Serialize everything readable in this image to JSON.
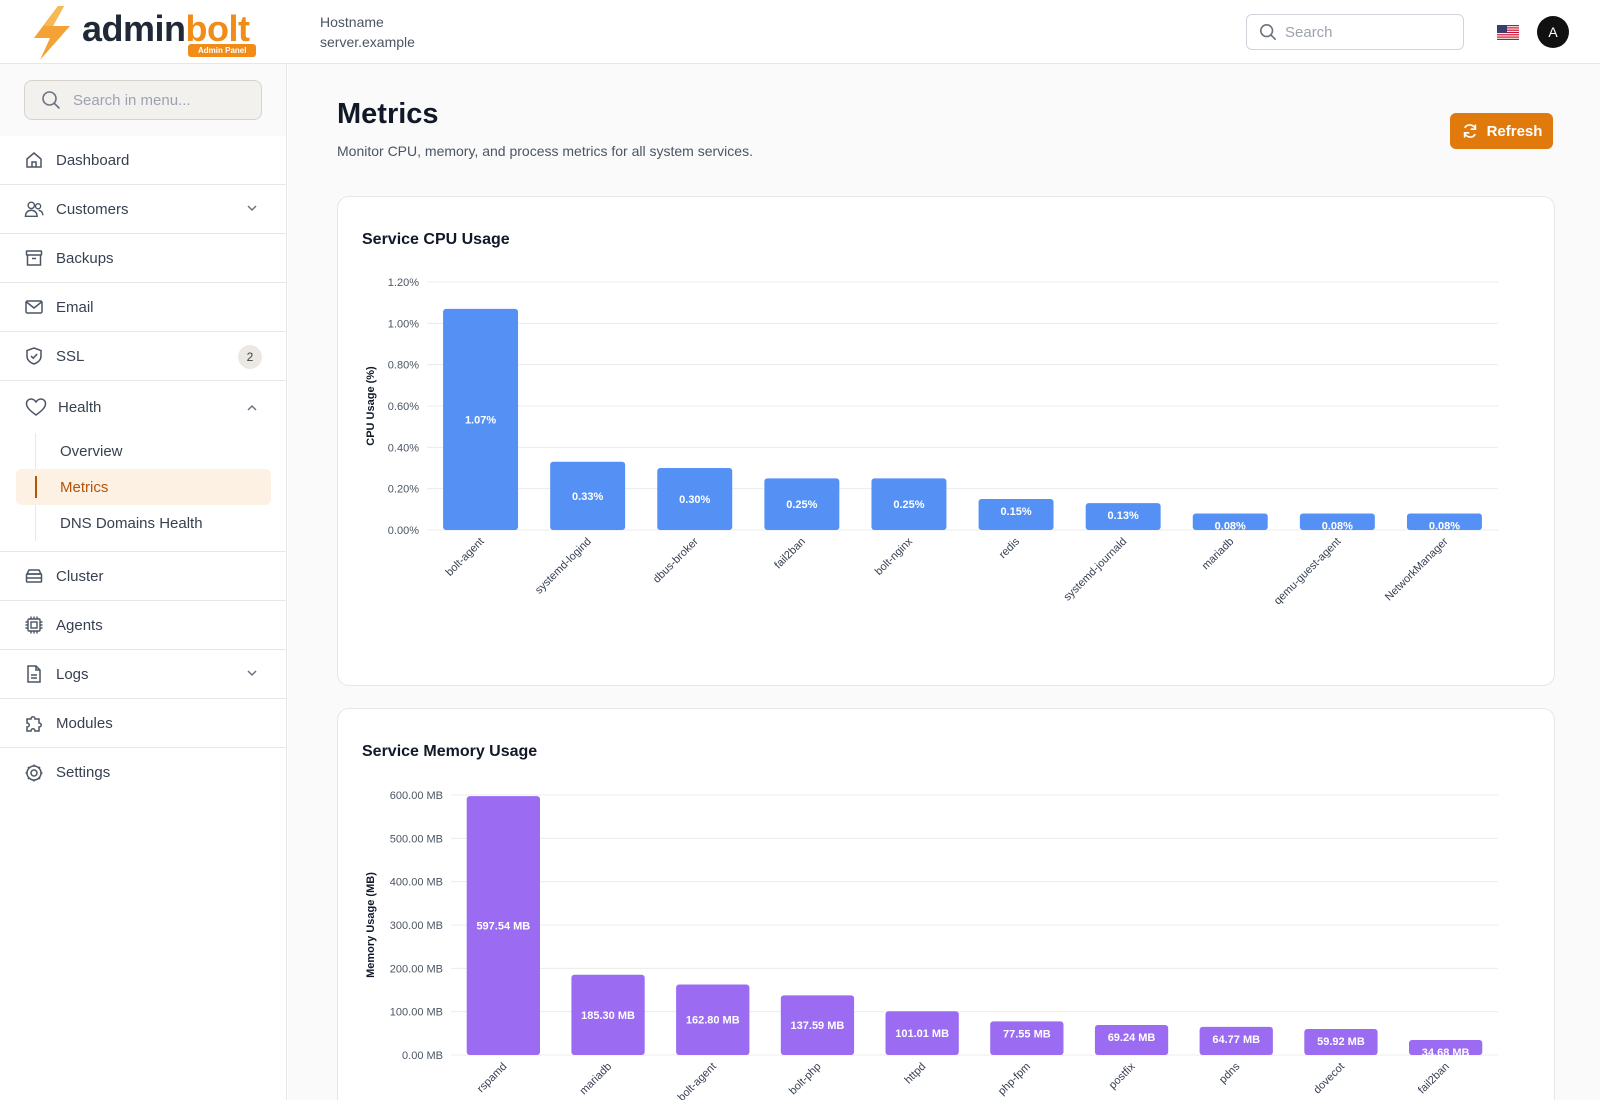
{
  "header": {
    "logo_text_a": "admin",
    "logo_text_b": "bolt",
    "logo_badge": "Admin Panel",
    "host_label": "Hostname",
    "host_value": "server.example",
    "search_placeholder": "Search",
    "avatar_initial": "A"
  },
  "sidebar": {
    "search_placeholder": "Search in menu...",
    "items": [
      {
        "label": "Dashboard",
        "icon": "home-icon"
      },
      {
        "label": "Customers",
        "icon": "users-icon"
      },
      {
        "label": "Backups",
        "icon": "archive-icon"
      },
      {
        "label": "Email",
        "icon": "mail-icon"
      },
      {
        "label": "SSL",
        "icon": "shield-icon",
        "badge": "2"
      },
      {
        "label": "Health",
        "icon": "heart-icon"
      },
      {
        "label": "Cluster",
        "icon": "server-icon"
      },
      {
        "label": "Agents",
        "icon": "cpu-icon"
      },
      {
        "label": "Logs",
        "icon": "file-icon"
      },
      {
        "label": "Modules",
        "icon": "puzzle-icon"
      },
      {
        "label": "Settings",
        "icon": "gear-icon"
      }
    ],
    "health_sub": [
      {
        "label": "Overview"
      },
      {
        "label": "Metrics"
      },
      {
        "label": "DNS Domains Health"
      }
    ]
  },
  "main": {
    "title": "Metrics",
    "subtitle": "Monitor CPU, memory, and process metrics for all system services.",
    "refresh_label": "Refresh"
  },
  "chart_data": [
    {
      "type": "bar",
      "title": "Service CPU Usage",
      "ylabel": "CPU Usage (%)",
      "xlabel": "",
      "ylim": [
        0,
        1.2
      ],
      "yticks": [
        "0.00%",
        "0.20%",
        "0.40%",
        "0.60%",
        "0.80%",
        "1.00%",
        "1.20%"
      ],
      "categories": [
        "bolt-agent",
        "systemd-logind",
        "dbus-broker",
        "fail2ban",
        "bolt-nginx",
        "redis",
        "systemd-journald",
        "mariadb",
        "qemu-guest-agent",
        "NetworkManager"
      ],
      "values": [
        1.07,
        0.33,
        0.3,
        0.25,
        0.25,
        0.15,
        0.13,
        0.08,
        0.08,
        0.08
      ],
      "labels": [
        "1.07%",
        "0.33%",
        "0.30%",
        "0.25%",
        "0.25%",
        "0.15%",
        "0.13%",
        "0.08%",
        "0.08%",
        "0.08%"
      ],
      "color": "#5591f5",
      "grid": true
    },
    {
      "type": "bar",
      "title": "Service Memory Usage",
      "ylabel": "Memory Usage (MB)",
      "xlabel": "",
      "ylim": [
        0,
        600
      ],
      "yticks": [
        "0.00 MB",
        "100.00 MB",
        "200.00 MB",
        "300.00 MB",
        "400.00 MB",
        "500.00 MB",
        "600.00 MB"
      ],
      "categories": [
        "rspamd",
        "mariadb",
        "bolt-agent",
        "bolt-php",
        "httpd",
        "php-fpm",
        "postfix",
        "pdns",
        "dovecot",
        "fail2ban"
      ],
      "values": [
        597.54,
        185.3,
        162.8,
        137.59,
        101.01,
        77.55,
        69.24,
        64.77,
        59.92,
        34.68
      ],
      "labels": [
        "597.54 MB",
        "185.30 MB",
        "162.80 MB",
        "137.59 MB",
        "101.01 MB",
        "77.55 MB",
        "69.24 MB",
        "64.77 MB",
        "59.92 MB",
        "34.68 MB"
      ],
      "color": "#9b6cf2",
      "grid": true
    }
  ]
}
